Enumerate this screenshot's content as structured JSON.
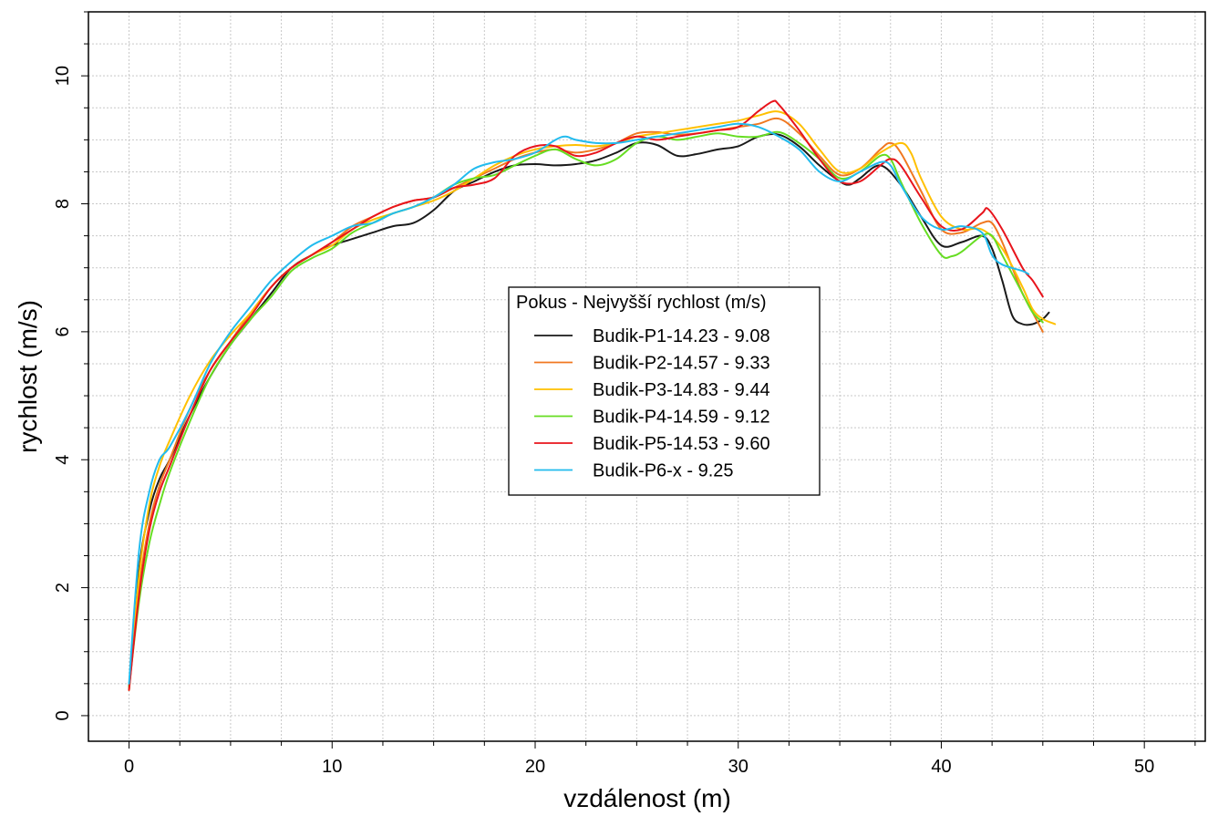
{
  "chart_data": {
    "type": "line",
    "xlabel": "vzdálenost (m)",
    "ylabel": "rychlost (m/s)",
    "xlim": [
      -2,
      53
    ],
    "ylim": [
      -0.4,
      11
    ],
    "x_ticks": [
      0,
      10,
      20,
      30,
      40,
      50
    ],
    "y_ticks": [
      0,
      2,
      4,
      6,
      8,
      10
    ],
    "grid": true,
    "legend": {
      "title": "Pokus - Nejvyšší rychlost (m/s)",
      "placement": "center-right"
    },
    "series": [
      {
        "name": "Budik-P1-14.23 - 9.08",
        "color": "#1a1a1a",
        "points": [
          [
            0,
            0.45
          ],
          [
            0.5,
            2.3
          ],
          [
            1,
            3.2
          ],
          [
            1.5,
            3.7
          ],
          [
            2,
            4.0
          ],
          [
            3,
            4.7
          ],
          [
            4,
            5.3
          ],
          [
            5,
            5.8
          ],
          [
            6,
            6.2
          ],
          [
            7,
            6.6
          ],
          [
            8,
            7.0
          ],
          [
            9,
            7.2
          ],
          [
            10,
            7.35
          ],
          [
            11,
            7.45
          ],
          [
            12,
            7.55
          ],
          [
            13,
            7.65
          ],
          [
            14,
            7.7
          ],
          [
            15,
            7.9
          ],
          [
            16,
            8.2
          ],
          [
            17,
            8.35
          ],
          [
            18,
            8.5
          ],
          [
            19,
            8.6
          ],
          [
            20,
            8.62
          ],
          [
            21,
            8.6
          ],
          [
            22,
            8.62
          ],
          [
            23,
            8.68
          ],
          [
            24,
            8.8
          ],
          [
            25,
            8.95
          ],
          [
            26,
            8.92
          ],
          [
            27,
            8.75
          ],
          [
            28,
            8.78
          ],
          [
            29,
            8.85
          ],
          [
            30,
            8.9
          ],
          [
            31,
            9.05
          ],
          [
            32,
            9.08
          ],
          [
            33,
            8.9
          ],
          [
            34,
            8.6
          ],
          [
            35,
            8.35
          ],
          [
            35.5,
            8.3
          ],
          [
            36,
            8.4
          ],
          [
            37,
            8.6
          ],
          [
            38,
            8.3
          ],
          [
            39,
            7.8
          ],
          [
            40,
            7.35
          ],
          [
            41,
            7.4
          ],
          [
            42,
            7.5
          ],
          [
            42.5,
            7.3
          ],
          [
            43,
            6.8
          ],
          [
            43.5,
            6.25
          ],
          [
            44,
            6.12
          ],
          [
            44.5,
            6.12
          ],
          [
            45,
            6.2
          ],
          [
            45.3,
            6.3
          ]
        ]
      },
      {
        "name": "Budik-P2-14.57 - 9.33",
        "color": "#f07820",
        "points": [
          [
            0,
            0.4
          ],
          [
            0.5,
            2.0
          ],
          [
            1,
            3.0
          ],
          [
            1.5,
            3.6
          ],
          [
            2,
            4.0
          ],
          [
            3,
            4.8
          ],
          [
            4,
            5.4
          ],
          [
            5,
            5.85
          ],
          [
            6,
            6.3
          ],
          [
            7,
            6.7
          ],
          [
            8,
            7.0
          ],
          [
            9,
            7.2
          ],
          [
            10,
            7.4
          ],
          [
            11,
            7.65
          ],
          [
            12,
            7.8
          ],
          [
            13,
            7.95
          ],
          [
            14,
            8.05
          ],
          [
            15,
            8.1
          ],
          [
            16,
            8.25
          ],
          [
            17,
            8.4
          ],
          [
            18,
            8.55
          ],
          [
            19,
            8.7
          ],
          [
            20,
            8.8
          ],
          [
            21,
            8.85
          ],
          [
            22,
            8.8
          ],
          [
            23,
            8.85
          ],
          [
            24,
            8.95
          ],
          [
            25,
            9.1
          ],
          [
            26,
            9.12
          ],
          [
            27,
            9.08
          ],
          [
            28,
            9.1
          ],
          [
            29,
            9.15
          ],
          [
            30,
            9.2
          ],
          [
            31,
            9.25
          ],
          [
            32,
            9.33
          ],
          [
            33,
            9.1
          ],
          [
            34,
            8.75
          ],
          [
            35,
            8.45
          ],
          [
            36,
            8.55
          ],
          [
            37,
            8.85
          ],
          [
            37.5,
            8.95
          ],
          [
            38,
            8.8
          ],
          [
            39,
            8.2
          ],
          [
            40,
            7.6
          ],
          [
            41,
            7.55
          ],
          [
            42,
            7.7
          ],
          [
            42.5,
            7.7
          ],
          [
            43,
            7.4
          ],
          [
            43.5,
            7.0
          ],
          [
            44,
            6.6
          ],
          [
            44.5,
            6.3
          ],
          [
            45,
            6.0
          ]
        ]
      },
      {
        "name": "Budik-P3-14.83 - 9.44",
        "color": "#ffc000",
        "points": [
          [
            0,
            0.4
          ],
          [
            0.5,
            2.2
          ],
          [
            1,
            3.3
          ],
          [
            1.5,
            3.9
          ],
          [
            2,
            4.3
          ],
          [
            3,
            5.0
          ],
          [
            4,
            5.55
          ],
          [
            5,
            5.95
          ],
          [
            6,
            6.3
          ],
          [
            7,
            6.7
          ],
          [
            8,
            7.0
          ],
          [
            9,
            7.2
          ],
          [
            10,
            7.35
          ],
          [
            11,
            7.6
          ],
          [
            12,
            7.75
          ],
          [
            13,
            7.85
          ],
          [
            14,
            7.95
          ],
          [
            15,
            8.05
          ],
          [
            16,
            8.2
          ],
          [
            17,
            8.4
          ],
          [
            18,
            8.6
          ],
          [
            19,
            8.75
          ],
          [
            20,
            8.85
          ],
          [
            21,
            8.9
          ],
          [
            22,
            8.92
          ],
          [
            23,
            8.9
          ],
          [
            24,
            8.95
          ],
          [
            25,
            9.05
          ],
          [
            26,
            9.1
          ],
          [
            27,
            9.15
          ],
          [
            28,
            9.2
          ],
          [
            29,
            9.25
          ],
          [
            30,
            9.3
          ],
          [
            31,
            9.38
          ],
          [
            32,
            9.44
          ],
          [
            33,
            9.25
          ],
          [
            34,
            8.85
          ],
          [
            35,
            8.5
          ],
          [
            36,
            8.55
          ],
          [
            37,
            8.8
          ],
          [
            38,
            8.95
          ],
          [
            38.5,
            8.8
          ],
          [
            39,
            8.4
          ],
          [
            40,
            7.8
          ],
          [
            41,
            7.6
          ],
          [
            42,
            7.6
          ],
          [
            43,
            7.3
          ],
          [
            44,
            6.7
          ],
          [
            44.5,
            6.35
          ],
          [
            45,
            6.2
          ],
          [
            45.6,
            6.12
          ]
        ]
      },
      {
        "name": "Budik-P4-14.59 - 9.12",
        "color": "#66dd22",
        "points": [
          [
            0,
            0.45
          ],
          [
            0.5,
            1.8
          ],
          [
            1,
            2.7
          ],
          [
            1.5,
            3.3
          ],
          [
            2,
            3.8
          ],
          [
            3,
            4.6
          ],
          [
            4,
            5.3
          ],
          [
            5,
            5.8
          ],
          [
            6,
            6.2
          ],
          [
            7,
            6.55
          ],
          [
            8,
            6.95
          ],
          [
            9,
            7.15
          ],
          [
            10,
            7.3
          ],
          [
            11,
            7.55
          ],
          [
            12,
            7.7
          ],
          [
            13,
            7.85
          ],
          [
            14,
            7.95
          ],
          [
            15,
            8.1
          ],
          [
            16,
            8.3
          ],
          [
            17,
            8.4
          ],
          [
            18,
            8.45
          ],
          [
            19,
            8.6
          ],
          [
            20,
            8.75
          ],
          [
            21,
            8.85
          ],
          [
            22,
            8.7
          ],
          [
            23,
            8.6
          ],
          [
            24,
            8.7
          ],
          [
            25,
            8.95
          ],
          [
            26,
            9.05
          ],
          [
            27,
            9.0
          ],
          [
            28,
            9.05
          ],
          [
            29,
            9.1
          ],
          [
            30,
            9.05
          ],
          [
            31,
            9.05
          ],
          [
            32,
            9.12
          ],
          [
            33,
            8.95
          ],
          [
            34,
            8.7
          ],
          [
            35,
            8.4
          ],
          [
            36,
            8.5
          ],
          [
            37,
            8.75
          ],
          [
            37.5,
            8.7
          ],
          [
            38,
            8.35
          ],
          [
            39,
            7.7
          ],
          [
            40,
            7.2
          ],
          [
            40.5,
            7.18
          ],
          [
            41,
            7.25
          ],
          [
            42,
            7.5
          ],
          [
            42.5,
            7.5
          ],
          [
            43,
            7.2
          ],
          [
            44,
            6.6
          ],
          [
            44.5,
            6.3
          ],
          [
            45,
            6.15
          ]
        ]
      },
      {
        "name": "Budik-P5-14.53 - 9.60",
        "color": "#e8141c",
        "points": [
          [
            0,
            0.4
          ],
          [
            0.5,
            1.9
          ],
          [
            1,
            2.9
          ],
          [
            1.5,
            3.5
          ],
          [
            2,
            3.9
          ],
          [
            3,
            4.7
          ],
          [
            4,
            5.4
          ],
          [
            5,
            5.85
          ],
          [
            6,
            6.25
          ],
          [
            7,
            6.7
          ],
          [
            8,
            7.0
          ],
          [
            9,
            7.2
          ],
          [
            10,
            7.4
          ],
          [
            11,
            7.6
          ],
          [
            12,
            7.8
          ],
          [
            13,
            7.95
          ],
          [
            14,
            8.05
          ],
          [
            15,
            8.1
          ],
          [
            16,
            8.25
          ],
          [
            17,
            8.3
          ],
          [
            18,
            8.4
          ],
          [
            19,
            8.75
          ],
          [
            20,
            8.9
          ],
          [
            21,
            8.9
          ],
          [
            22,
            8.75
          ],
          [
            23,
            8.8
          ],
          [
            24,
            8.95
          ],
          [
            25,
            9.05
          ],
          [
            26,
            9.0
          ],
          [
            27,
            9.05
          ],
          [
            28,
            9.1
          ],
          [
            29,
            9.15
          ],
          [
            30,
            9.2
          ],
          [
            31,
            9.45
          ],
          [
            31.7,
            9.6
          ],
          [
            32,
            9.55
          ],
          [
            33,
            9.15
          ],
          [
            34,
            8.7
          ],
          [
            35,
            8.35
          ],
          [
            36,
            8.35
          ],
          [
            37,
            8.6
          ],
          [
            37.5,
            8.7
          ],
          [
            38,
            8.6
          ],
          [
            39,
            8.1
          ],
          [
            40,
            7.65
          ],
          [
            41,
            7.6
          ],
          [
            42,
            7.85
          ],
          [
            42.3,
            7.92
          ],
          [
            43,
            7.6
          ],
          [
            44,
            7.0
          ],
          [
            44.5,
            6.8
          ],
          [
            45,
            6.55
          ]
        ]
      },
      {
        "name": "Budik-P6-x - 9.25",
        "color": "#22bbee",
        "points": [
          [
            0,
            0.5
          ],
          [
            0.5,
            2.6
          ],
          [
            1,
            3.5
          ],
          [
            1.5,
            4.0
          ],
          [
            2,
            4.2
          ],
          [
            3,
            4.8
          ],
          [
            4,
            5.5
          ],
          [
            5,
            6.0
          ],
          [
            6,
            6.4
          ],
          [
            7,
            6.8
          ],
          [
            8,
            7.1
          ],
          [
            9,
            7.35
          ],
          [
            10,
            7.5
          ],
          [
            11,
            7.65
          ],
          [
            12,
            7.7
          ],
          [
            13,
            7.85
          ],
          [
            14,
            7.95
          ],
          [
            15,
            8.1
          ],
          [
            16,
            8.3
          ],
          [
            17,
            8.55
          ],
          [
            18,
            8.65
          ],
          [
            19,
            8.7
          ],
          [
            20,
            8.8
          ],
          [
            21,
            9.0
          ],
          [
            21.5,
            9.05
          ],
          [
            22,
            9.0
          ],
          [
            23,
            8.95
          ],
          [
            24,
            8.95
          ],
          [
            25,
            9.0
          ],
          [
            26,
            9.05
          ],
          [
            27,
            9.1
          ],
          [
            28,
            9.15
          ],
          [
            29,
            9.2
          ],
          [
            30,
            9.25
          ],
          [
            31,
            9.2
          ],
          [
            32,
            9.05
          ],
          [
            33,
            8.85
          ],
          [
            34,
            8.5
          ],
          [
            35,
            8.35
          ],
          [
            36,
            8.5
          ],
          [
            37,
            8.65
          ],
          [
            37.5,
            8.6
          ],
          [
            38,
            8.3
          ],
          [
            39,
            7.8
          ],
          [
            40,
            7.6
          ],
          [
            41,
            7.65
          ],
          [
            42,
            7.55
          ],
          [
            42.5,
            7.2
          ],
          [
            43,
            7.05
          ],
          [
            44,
            6.95
          ],
          [
            44.3,
            6.9
          ]
        ]
      }
    ]
  }
}
